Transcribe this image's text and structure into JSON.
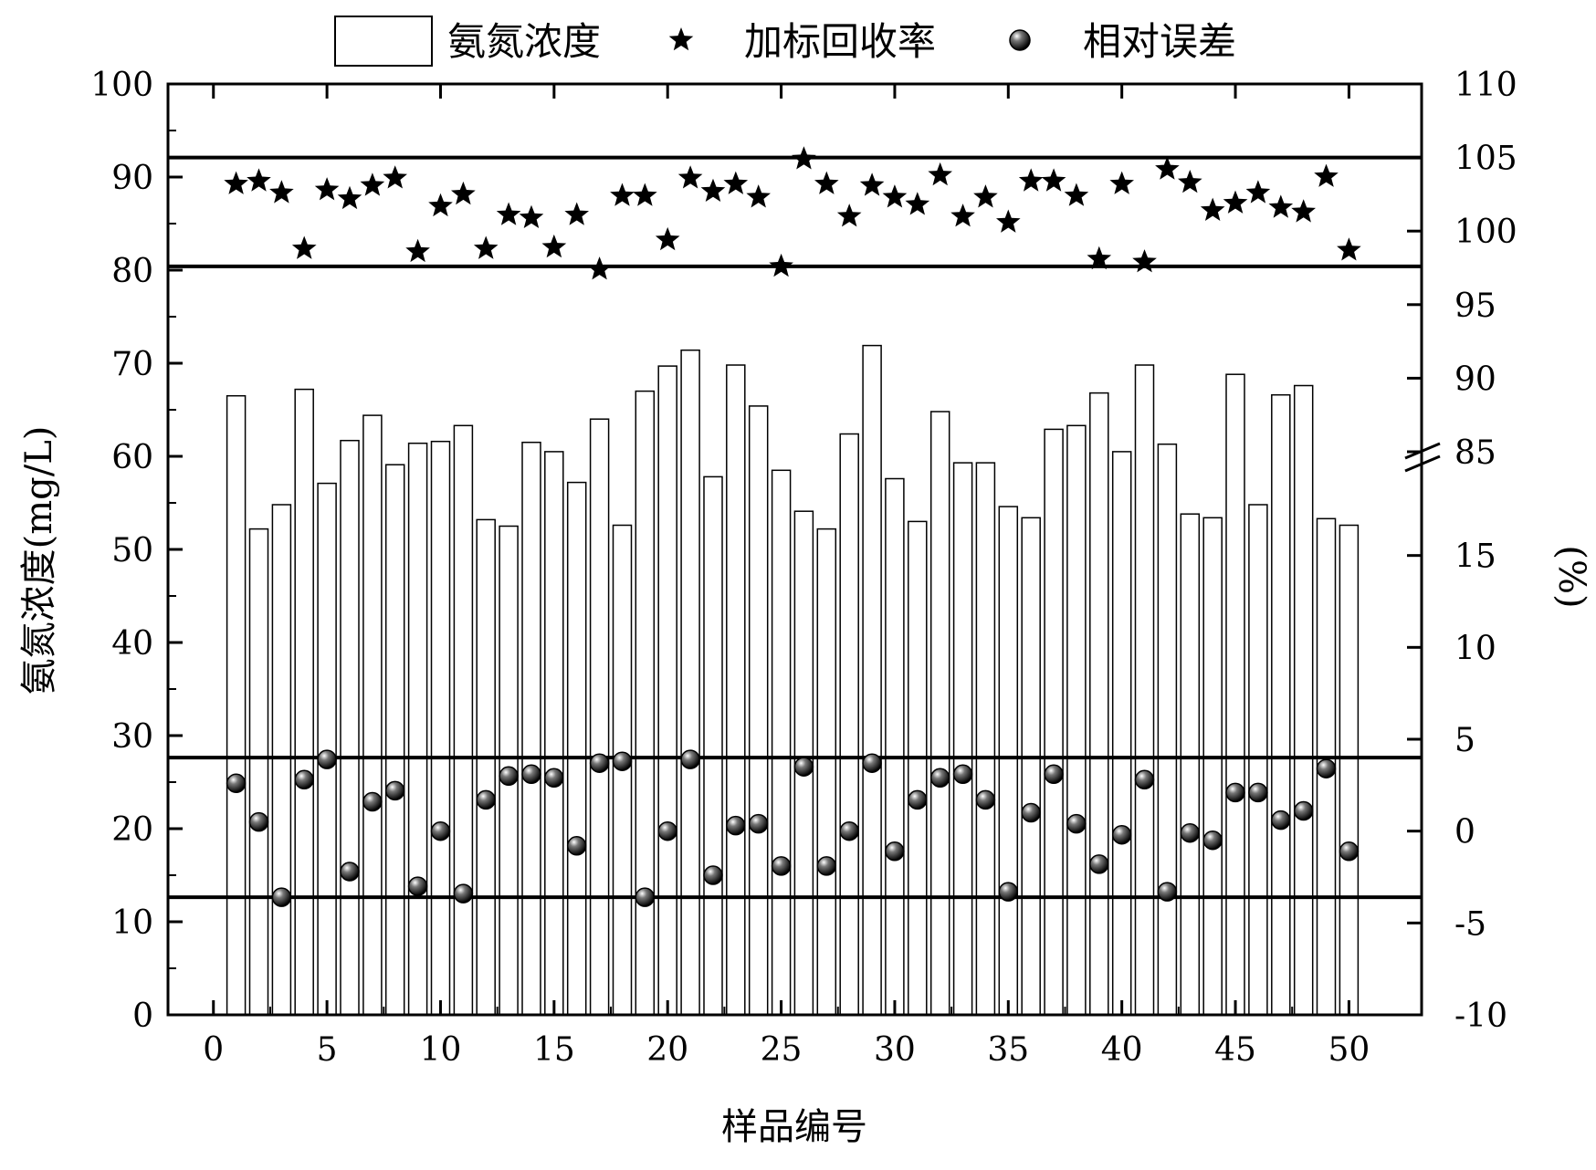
{
  "chart_data": {
    "type": "bar",
    "xlabel": "样品编号",
    "ylabel_left": "氨氮浓度(mg/L)",
    "ylabel_right": "(%)",
    "x_ticks": [
      "0",
      "5",
      "10",
      "15",
      "20",
      "25",
      "30",
      "35",
      "40",
      "45",
      "50"
    ],
    "y_left_ticks": [
      "0",
      "10",
      "20",
      "30",
      "40",
      "50",
      "60",
      "70",
      "80",
      "90",
      "100"
    ],
    "y_left_lim": [
      0,
      100
    ],
    "y_right_upper_ticks": [
      "85",
      "90",
      "95",
      "100",
      "105",
      "110"
    ],
    "y_right_upper_lim": [
      85,
      110
    ],
    "y_right_lower_ticks": [
      "-10",
      "-5",
      "0",
      "5",
      "10",
      "15"
    ],
    "y_right_lower_lim": [
      -10,
      20
    ],
    "legend": {
      "position": "top",
      "items": [
        "氨氮浓度",
        "加标回收率",
        "相对误差"
      ]
    },
    "series": [
      {
        "name": "氨氮浓度",
        "type": "bar",
        "x": [
          1,
          2,
          3,
          4,
          5,
          6,
          7,
          8,
          9,
          10,
          11,
          12,
          13,
          14,
          15,
          16,
          17,
          18,
          19,
          20,
          21,
          22,
          23,
          24,
          25,
          26,
          27,
          28,
          29,
          30,
          31,
          32,
          33,
          34,
          35,
          36,
          37,
          38,
          39,
          40,
          41,
          42,
          43,
          44,
          45,
          46,
          47,
          48,
          49,
          50
        ],
        "values": [
          66.5,
          52.2,
          54.8,
          67.2,
          57.1,
          61.7,
          64.4,
          59.1,
          61.4,
          61.6,
          63.3,
          53.2,
          52.5,
          61.5,
          60.5,
          57.2,
          64.0,
          52.6,
          67.0,
          69.7,
          71.4,
          57.8,
          69.8,
          65.4,
          58.5,
          54.1,
          52.2,
          62.4,
          71.9,
          57.6,
          53.0,
          64.8,
          59.3,
          59.3,
          54.6,
          53.4,
          62.9,
          63.3,
          66.8,
          60.5,
          69.8,
          61.3,
          53.8,
          53.4,
          68.8,
          54.8,
          66.6,
          67.6,
          53.3,
          52.6
        ]
      },
      {
        "name": "加标回收率",
        "type": "scatter",
        "marker": "star",
        "x": [
          1,
          2,
          3,
          4,
          5,
          6,
          7,
          8,
          9,
          10,
          11,
          12,
          13,
          14,
          15,
          16,
          17,
          18,
          19,
          20,
          21,
          22,
          23,
          24,
          25,
          26,
          27,
          28,
          29,
          30,
          31,
          32,
          33,
          34,
          35,
          36,
          37,
          38,
          39,
          40,
          41,
          42,
          43,
          44,
          45,
          46,
          47,
          48,
          49,
          50
        ],
        "values": [
          103.2,
          103.4,
          102.6,
          98.8,
          102.8,
          102.2,
          103.1,
          103.6,
          98.6,
          101.7,
          102.5,
          98.8,
          101.1,
          100.9,
          98.9,
          101.1,
          97.4,
          102.4,
          102.4,
          99.4,
          103.6,
          102.7,
          103.2,
          102.3,
          97.6,
          104.9,
          103.2,
          101.0,
          103.1,
          102.3,
          101.8,
          103.8,
          101.0,
          102.3,
          100.6,
          103.4,
          103.4,
          102.4,
          98.1,
          103.2,
          97.9,
          104.2,
          103.3,
          101.4,
          101.9,
          102.6,
          101.6,
          101.3,
          103.7,
          98.7
        ]
      },
      {
        "name": "相对误差",
        "type": "scatter",
        "marker": "sphere",
        "x": [
          1,
          2,
          3,
          4,
          5,
          6,
          7,
          8,
          9,
          10,
          11,
          12,
          13,
          14,
          15,
          16,
          17,
          18,
          19,
          20,
          21,
          22,
          23,
          24,
          25,
          26,
          27,
          28,
          29,
          30,
          31,
          32,
          33,
          34,
          35,
          36,
          37,
          38,
          39,
          40,
          41,
          42,
          43,
          44,
          45,
          46,
          47,
          48,
          49,
          50
        ],
        "values": [
          2.6,
          0.5,
          -3.6,
          2.8,
          3.9,
          -2.2,
          1.6,
          2.2,
          -3.0,
          0.0,
          -3.4,
          1.7,
          3.0,
          3.1,
          2.9,
          -0.8,
          3.7,
          3.8,
          -3.6,
          0.0,
          3.9,
          -2.4,
          0.3,
          0.4,
          -1.9,
          3.5,
          -1.9,
          0.0,
          3.7,
          -1.1,
          1.7,
          2.9,
          3.1,
          1.7,
          -3.3,
          1.0,
          3.1,
          0.4,
          -1.8,
          -0.2,
          2.8,
          -3.3,
          -0.1,
          -0.5,
          2.1,
          2.1,
          0.6,
          1.1,
          3.4,
          -1.1
        ]
      }
    ],
    "reference_lines": {
      "recovery_upper": 105,
      "recovery_lower": 97.6,
      "error_upper": 4,
      "error_lower": -3.6
    }
  }
}
